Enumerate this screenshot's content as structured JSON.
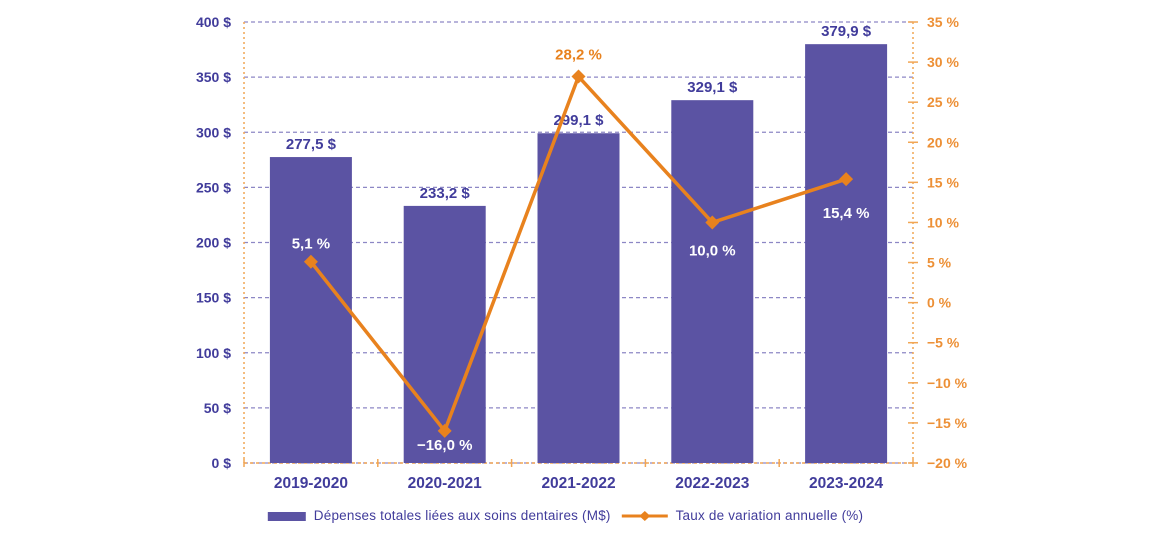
{
  "chart_data": {
    "type": "combo_bar_line",
    "categories": [
      "2019-2020",
      "2020-2021",
      "2021-2022",
      "2022-2023",
      "2023-2024"
    ],
    "series": [
      {
        "name": "Dépenses totales liées aux soins dentaires (M$)",
        "type": "bar",
        "axis": "left",
        "values": [
          277.5,
          233.2,
          299.1,
          329.1,
          379.9
        ],
        "labels": [
          "277,5 $",
          "233,2 $",
          "299,1 $",
          "329,1 $",
          "379,9 $"
        ],
        "color": "#5b53a3"
      },
      {
        "name": "Taux de variation annuelle (%)",
        "type": "line",
        "axis": "right",
        "values": [
          5.1,
          -16.0,
          28.2,
          10.0,
          15.4
        ],
        "labels": [
          "5,1 %",
          "−16,0 %",
          "28,2 %",
          "10,0 %",
          "15,4 %"
        ],
        "label_dy": [
          -18,
          14,
          -22,
          28,
          34
        ],
        "label_colors": [
          "#ffffff",
          "#ffffff",
          "#e8821e",
          "#ffffff",
          "#ffffff"
        ],
        "color": "#e8821e"
      }
    ],
    "left_axis": {
      "min": 0,
      "max": 400,
      "step": 50,
      "tick_labels": [
        "400 $",
        "350 $",
        "300 $",
        "250 $",
        "200 $",
        "150 $",
        "100 $",
        "50 $",
        "0 $"
      ]
    },
    "right_axis": {
      "min": -20,
      "max": 35,
      "step": 5,
      "tick_labels": [
        "35 %",
        "30 %",
        "25 %",
        "20 %",
        "15 %",
        "10 %",
        "5 %",
        "0 %",
        "−5 %",
        "−10 %",
        "−15 %",
        "−20 %"
      ]
    },
    "grid": true,
    "legend_position": "bottom-center"
  },
  "colors": {
    "background": "#ffffff",
    "bar": "#5b53a3",
    "line": "#e8821e",
    "purple_text": "#413c9b",
    "orange_text": "#ed9036",
    "gridline": "#8d87c5",
    "axis_line": "#f1a654"
  }
}
